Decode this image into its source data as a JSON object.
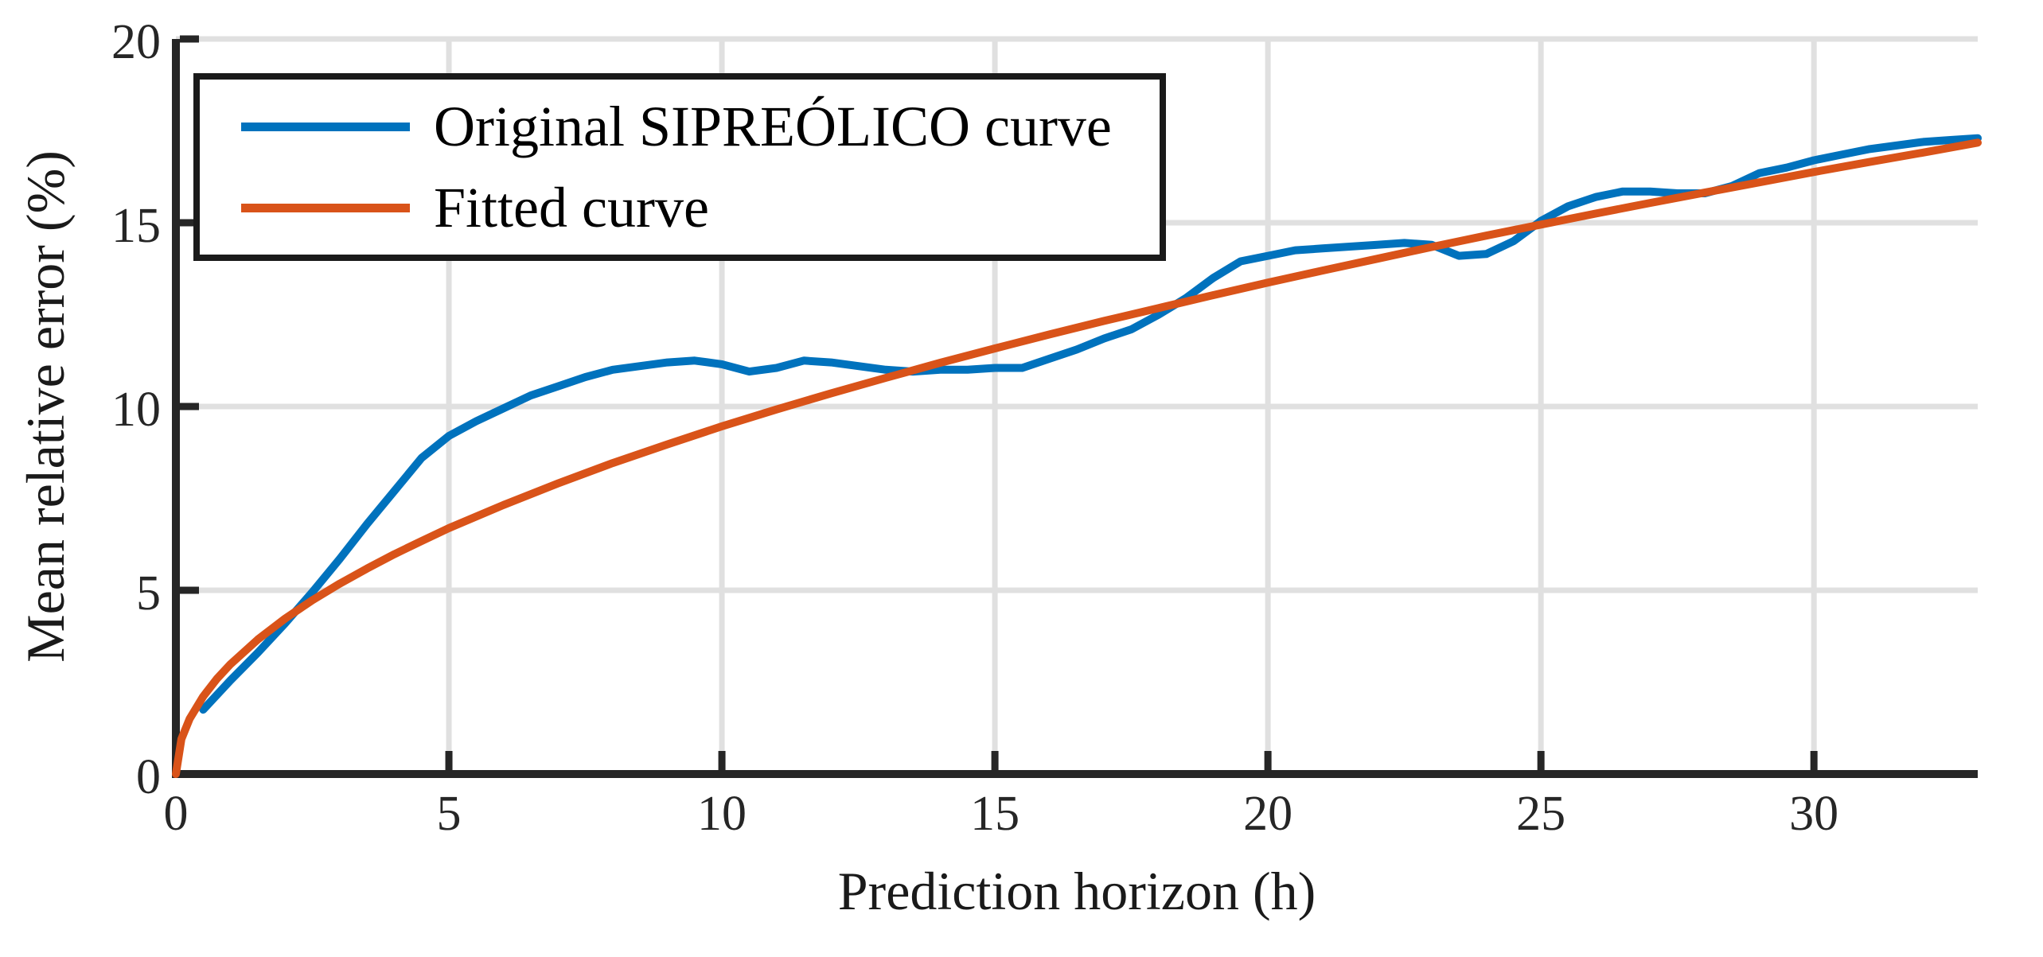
{
  "figure": {
    "background": "#ffffff",
    "axis_color": "#262626",
    "grid_color": "#e0e0e0",
    "text_color": "#1a1a1a"
  },
  "chart_data": {
    "type": "line",
    "title": "",
    "xlabel": "Prediction horizon (h)",
    "ylabel": "Mean relative error (%)",
    "xlim": [
      0,
      33
    ],
    "ylim": [
      0,
      20
    ],
    "xticks": [
      0,
      5,
      10,
      15,
      20,
      25,
      30
    ],
    "yticks": [
      0,
      5,
      10,
      15,
      20
    ],
    "grid": true,
    "legend_position": "top-left",
    "series": [
      {
        "name": "Original SIPREÓLICO curve",
        "color": "#0072BD",
        "x": [
          0.5,
          1,
          1.5,
          2,
          2.5,
          3,
          3.5,
          4,
          4.5,
          5,
          5.5,
          6,
          6.5,
          7,
          7.5,
          8,
          8.5,
          9,
          9.5,
          10,
          10.5,
          11,
          11.5,
          12,
          12.5,
          13,
          13.5,
          14,
          14.5,
          15,
          15.5,
          16,
          16.5,
          17,
          17.5,
          18,
          18.5,
          19,
          19.5,
          20,
          20.5,
          21,
          21.5,
          22,
          22.5,
          23,
          23.5,
          24,
          24.5,
          25,
          25.5,
          26,
          26.5,
          27,
          27.5,
          28,
          28.5,
          29,
          29.5,
          30,
          30.5,
          31,
          31.5,
          32,
          32.5,
          33
        ],
        "y": [
          1.75,
          2.55,
          3.3,
          4.1,
          4.95,
          5.85,
          6.8,
          7.7,
          8.6,
          9.2,
          9.6,
          9.95,
          10.3,
          10.55,
          10.8,
          11.0,
          11.1,
          11.2,
          11.25,
          11.15,
          10.95,
          11.05,
          11.25,
          11.2,
          11.1,
          11.0,
          10.95,
          11.0,
          11.0,
          11.05,
          11.05,
          11.3,
          11.55,
          11.85,
          12.1,
          12.5,
          12.95,
          13.5,
          13.95,
          14.1,
          14.25,
          14.3,
          14.35,
          14.4,
          14.45,
          14.4,
          14.1,
          14.15,
          14.5,
          15.05,
          15.45,
          15.7,
          15.85,
          15.85,
          15.8,
          15.8,
          16.0,
          16.35,
          16.5,
          16.7,
          16.85,
          17.0,
          17.1,
          17.2,
          17.25,
          17.3
        ]
      },
      {
        "name": "Fitted curve",
        "color": "#D95319",
        "x": [
          0,
          0.1,
          0.25,
          0.5,
          0.75,
          1,
          1.5,
          2,
          2.5,
          3,
          3.5,
          4,
          4.5,
          5,
          6,
          7,
          8,
          9,
          10,
          11,
          12,
          13,
          14,
          15,
          16,
          17,
          18,
          19,
          20,
          21,
          22,
          23,
          24,
          25,
          26,
          27,
          28,
          29,
          30,
          31,
          32,
          33
        ],
        "y": [
          0,
          0.95,
          1.5,
          2.11,
          2.59,
          2.99,
          3.66,
          4.23,
          4.73,
          5.18,
          5.59,
          5.98,
          6.34,
          6.69,
          7.32,
          7.91,
          8.46,
          8.97,
          9.46,
          9.92,
          10.36,
          10.78,
          11.19,
          11.58,
          11.96,
          12.33,
          12.68,
          13.03,
          13.37,
          13.7,
          14.02,
          14.34,
          14.65,
          14.95,
          15.25,
          15.54,
          15.82,
          16.1,
          16.38,
          16.65,
          16.91,
          17.18
        ]
      }
    ]
  }
}
